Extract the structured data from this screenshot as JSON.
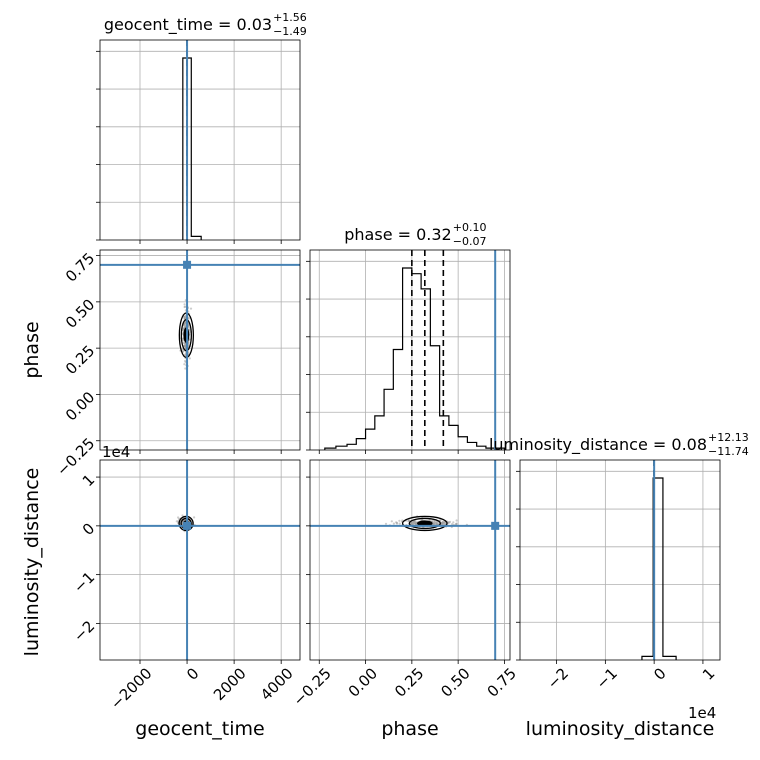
{
  "chart_data": {
    "type": "corner",
    "parameters": [
      {
        "name": "geocent_time",
        "title": {
          "main": "geocent_time = 0.03",
          "sup": "+1.56",
          "sub": "−1.49"
        },
        "axis_label": "geocent_time",
        "range": [
          -3700,
          4800
        ],
        "ticks": [
          -2000,
          0,
          2000,
          4000
        ],
        "tick_labels": [
          "−2000",
          "0",
          "2000",
          "4000"
        ],
        "injection": 0,
        "quantiles": [
          -1.49,
          0.03,
          1.56
        ],
        "hist": {
          "edges": [
            -180,
            0,
            180,
            600
          ],
          "counts": [
            1.0,
            1.0,
            0.02
          ]
        }
      },
      {
        "name": "phase",
        "title": {
          "main": "phase = 0.32",
          "sup": "+0.10",
          "sub": "−0.07"
        },
        "axis_label": "phase",
        "range": [
          -0.3,
          0.78
        ],
        "ticks": [
          -0.25,
          0.0,
          0.25,
          0.5,
          0.75
        ],
        "tick_labels": [
          "−0.25",
          "0.00",
          "0.25",
          "0.50",
          "0.75"
        ],
        "injection": 0.7,
        "quantiles": [
          0.25,
          0.32,
          0.42
        ],
        "hist": {
          "edges": [
            -0.22,
            -0.16,
            -0.1,
            -0.05,
            0.0,
            0.05,
            0.1,
            0.15,
            0.2,
            0.25,
            0.3,
            0.35,
            0.4,
            0.45,
            0.5,
            0.55,
            0.6,
            0.65,
            0.7,
            0.75
          ],
          "counts": [
            0.01,
            0.02,
            0.03,
            0.06,
            0.11,
            0.18,
            0.32,
            0.53,
            0.96,
            0.93,
            0.85,
            0.55,
            0.18,
            0.13,
            0.07,
            0.04,
            0.02,
            0.01,
            0.01
          ]
        }
      },
      {
        "name": "luminosity_distance",
        "title": {
          "main": "luminosity_distance = 0.08",
          "sup": "+12.13",
          "sub": "−11.74"
        },
        "axis_label": "luminosity_distance",
        "range": [
          -2.75,
          1.35
        ],
        "ticks": [
          -2,
          -1,
          0,
          1
        ],
        "tick_labels": [
          "−2",
          "−1",
          "0",
          "1"
        ],
        "offset_label": "1e4",
        "injection": 0,
        "quantiles": [
          -0.00117,
          0.0,
          0.00121
        ],
        "hist": {
          "edges": [
            -0.25,
            -0.02,
            0.0,
            0.18,
            0.45
          ],
          "counts": [
            0.02,
            1.0,
            1.0,
            0.02
          ]
        }
      }
    ],
    "injection_color": "#4682b4",
    "panels_2d": [
      {
        "x": "geocent_time",
        "y": "phase",
        "contour_center": [
          -30,
          0.32
        ],
        "contour_spread": [
          120,
          0.12
        ]
      },
      {
        "x": "geocent_time",
        "y": "luminosity_distance",
        "contour_center": [
          -40,
          0.05
        ],
        "contour_spread": [
          250,
          0.08
        ]
      },
      {
        "x": "phase",
        "y": "luminosity_distance",
        "contour_center": [
          0.32,
          0.05
        ],
        "contour_spread": [
          0.12,
          0.06
        ]
      }
    ]
  }
}
